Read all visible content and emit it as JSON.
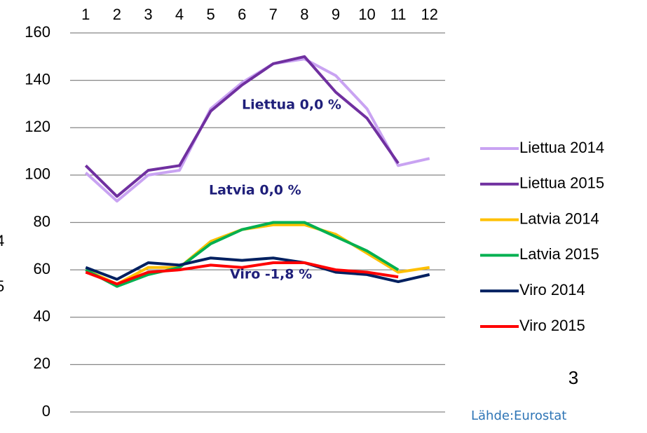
{
  "chart_data": {
    "type": "line",
    "categories": [
      "1",
      "2",
      "3",
      "4",
      "5",
      "6",
      "7",
      "8",
      "9",
      "10",
      "11",
      "12"
    ],
    "series": [
      {
        "name": "Liettua 2014",
        "color": "#c9a3f2",
        "values": [
          101,
          89,
          100,
          102,
          128,
          139,
          147,
          149,
          142,
          128,
          104,
          107
        ]
      },
      {
        "name": "Liettua 2015",
        "color": "#7030a0",
        "values": [
          104,
          91,
          102,
          104,
          127,
          138,
          147,
          150,
          135,
          124,
          105,
          null
        ]
      },
      {
        "name": "Latvia 2014",
        "color": "#ffc000",
        "values": [
          60,
          54,
          61,
          61,
          72,
          77,
          79,
          79,
          75,
          67,
          59,
          61
        ]
      },
      {
        "name": "Latvia 2015",
        "color": "#00b050",
        "values": [
          60,
          53,
          58,
          61,
          71,
          77,
          80,
          80,
          74,
          68,
          60,
          null
        ]
      },
      {
        "name": "Viro 2014",
        "color": "#002060",
        "values": [
          61,
          56,
          63,
          62,
          65,
          64,
          65,
          63,
          59,
          58,
          55,
          58
        ]
      },
      {
        "name": "Viro 2015",
        "color": "#ff0000",
        "values": [
          59,
          54,
          59,
          60,
          62,
          61,
          63,
          63,
          60,
          59,
          57,
          null
        ]
      }
    ],
    "ylim": [
      0,
      160
    ],
    "yticks": [
      0,
      20,
      40,
      60,
      80,
      100,
      120,
      140,
      160
    ],
    "grid": true,
    "annotations": [
      "Liettua 0,0 %",
      "Latvia 0,0 %",
      "Viro -1,8 %"
    ],
    "edge_labels": [
      "4",
      "5"
    ],
    "page_number": "3",
    "source": "Lähde:Eurostat"
  }
}
